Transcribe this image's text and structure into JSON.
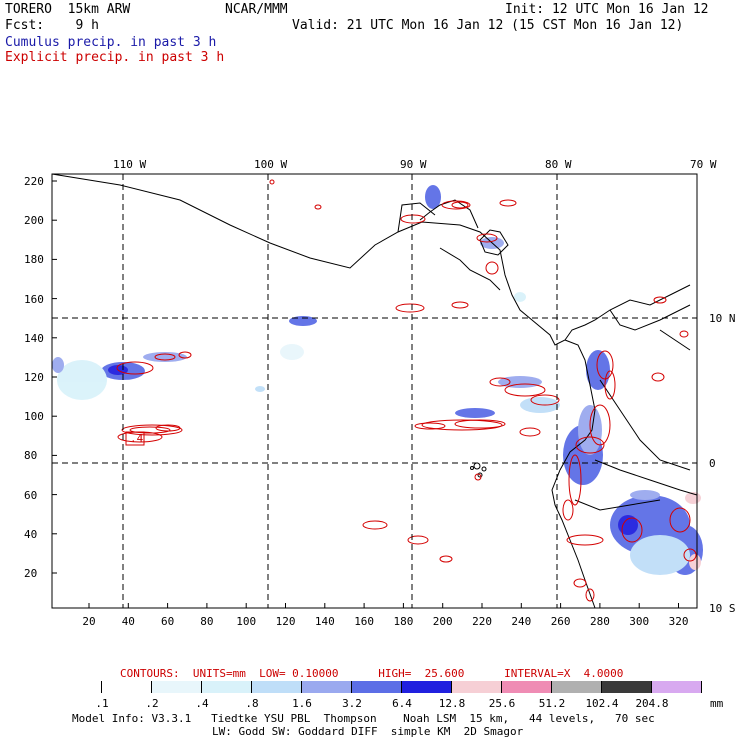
{
  "header": {
    "model": "TORERO  15km ARW",
    "org": "NCAR/MMM",
    "init": "Init: 12 UTC Mon 16 Jan 12",
    "fcst": "Fcst:    9 h",
    "valid": "Valid: 21 UTC Mon 16 Jan 12 (15 CST Mon 16 Jan 12)",
    "field1": "Cumulus precip. in past 3 h",
    "field2": "Explicit precip. in past 3 h"
  },
  "map": {
    "lon_labels": [
      "110 W",
      "100 W",
      "90 W",
      "80 W",
      "70 W"
    ],
    "lat_labels": [
      "10 N",
      "0",
      "10 S"
    ],
    "y_ticks": [
      "220",
      "200",
      "180",
      "160",
      "140",
      "120",
      "100",
      "80",
      "60",
      "40",
      "20"
    ],
    "x_ticks": [
      "20",
      "40",
      "60",
      "80",
      "100",
      "120",
      "140",
      "160",
      "180",
      "200",
      "220",
      "240",
      "260",
      "280",
      "300",
      "320"
    ],
    "box_label": ".4"
  },
  "contour_info": {
    "text": "CONTOURS:  UNITS=mm  LOW= 0.10000      HIGH=  25.600      INTERVAL=X  4.0000"
  },
  "colorbar": {
    "values": [
      ".1",
      ".2",
      ".4",
      ".8",
      "1.6",
      "3.2",
      "6.4",
      "12.8",
      "25.6",
      "51.2",
      "102.4",
      "204.8"
    ],
    "unit": "mm",
    "colors": [
      "#ffffff",
      "#ffffff",
      "#e8f6fb",
      "#d9f2fa",
      "#bfdef8",
      "#9aa9ef",
      "#5c6ee6",
      "#2020df",
      "#f6cfd5",
      "#ef8cb4",
      "#b0b0b0",
      "#3a3a3a",
      "#d8a9f0"
    ]
  },
  "footer": {
    "line1": "Model Info: V3.3.1   Tiedtke YSU PBL  Thompson    Noah LSM  15 km,   44 levels,   70 sec",
    "line2": "LW: Godd SW: Goddard DIFF  simple KM  2D Smagor"
  }
}
